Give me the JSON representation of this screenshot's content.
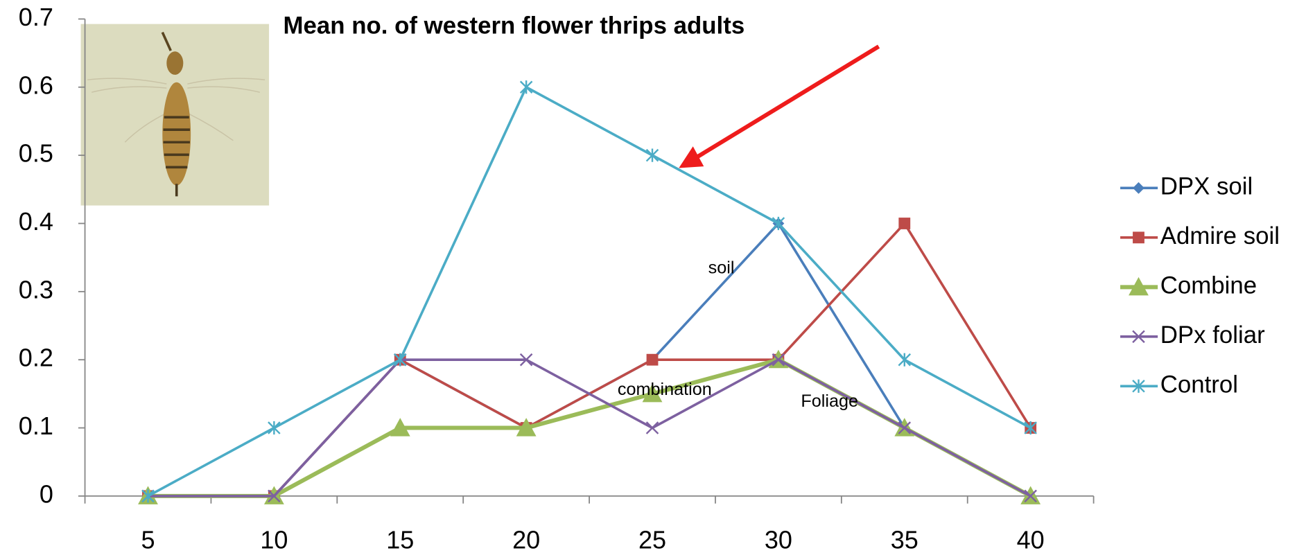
{
  "chart_data": {
    "type": "line",
    "title": "Mean no. of western flower thrips adults",
    "categories": [
      "5",
      "10",
      "15",
      "20",
      "25",
      "30",
      "35",
      "40"
    ],
    "series": [
      {
        "name": "DPX soil",
        "color": "#4a7ebb",
        "marker": "diamond",
        "values": [
          0,
          0,
          0.2,
          0.1,
          0.2,
          0.4,
          0.1,
          0
        ]
      },
      {
        "name": "Admire soil",
        "color": "#be4b48",
        "marker": "square",
        "values": [
          0,
          0,
          0.2,
          0.1,
          0.2,
          0.2,
          0.4,
          0.1
        ]
      },
      {
        "name": "Combine",
        "color": "#9bbb59",
        "marker": "triangle",
        "values": [
          0,
          0,
          0.1,
          0.1,
          0.15,
          0.2,
          0.1,
          0
        ]
      },
      {
        "name": "DPx foliar",
        "color": "#7d60a0",
        "marker": "x",
        "values": [
          0,
          0,
          0.2,
          0.2,
          0.1,
          0.2,
          0.1,
          0
        ]
      },
      {
        "name": "Control",
        "color": "#4bacc6",
        "marker": "star",
        "values": [
          0,
          0.1,
          0.2,
          0.6,
          0.5,
          0.4,
          0.2,
          0.1
        ]
      }
    ],
    "ylim": [
      0,
      0.7
    ],
    "yticks": [
      0,
      0.1,
      0.2,
      0.3,
      0.4,
      0.5,
      0.6,
      0.7
    ],
    "legend": "right",
    "annotations": [
      "soil",
      "combination",
      "Foliage"
    ]
  }
}
